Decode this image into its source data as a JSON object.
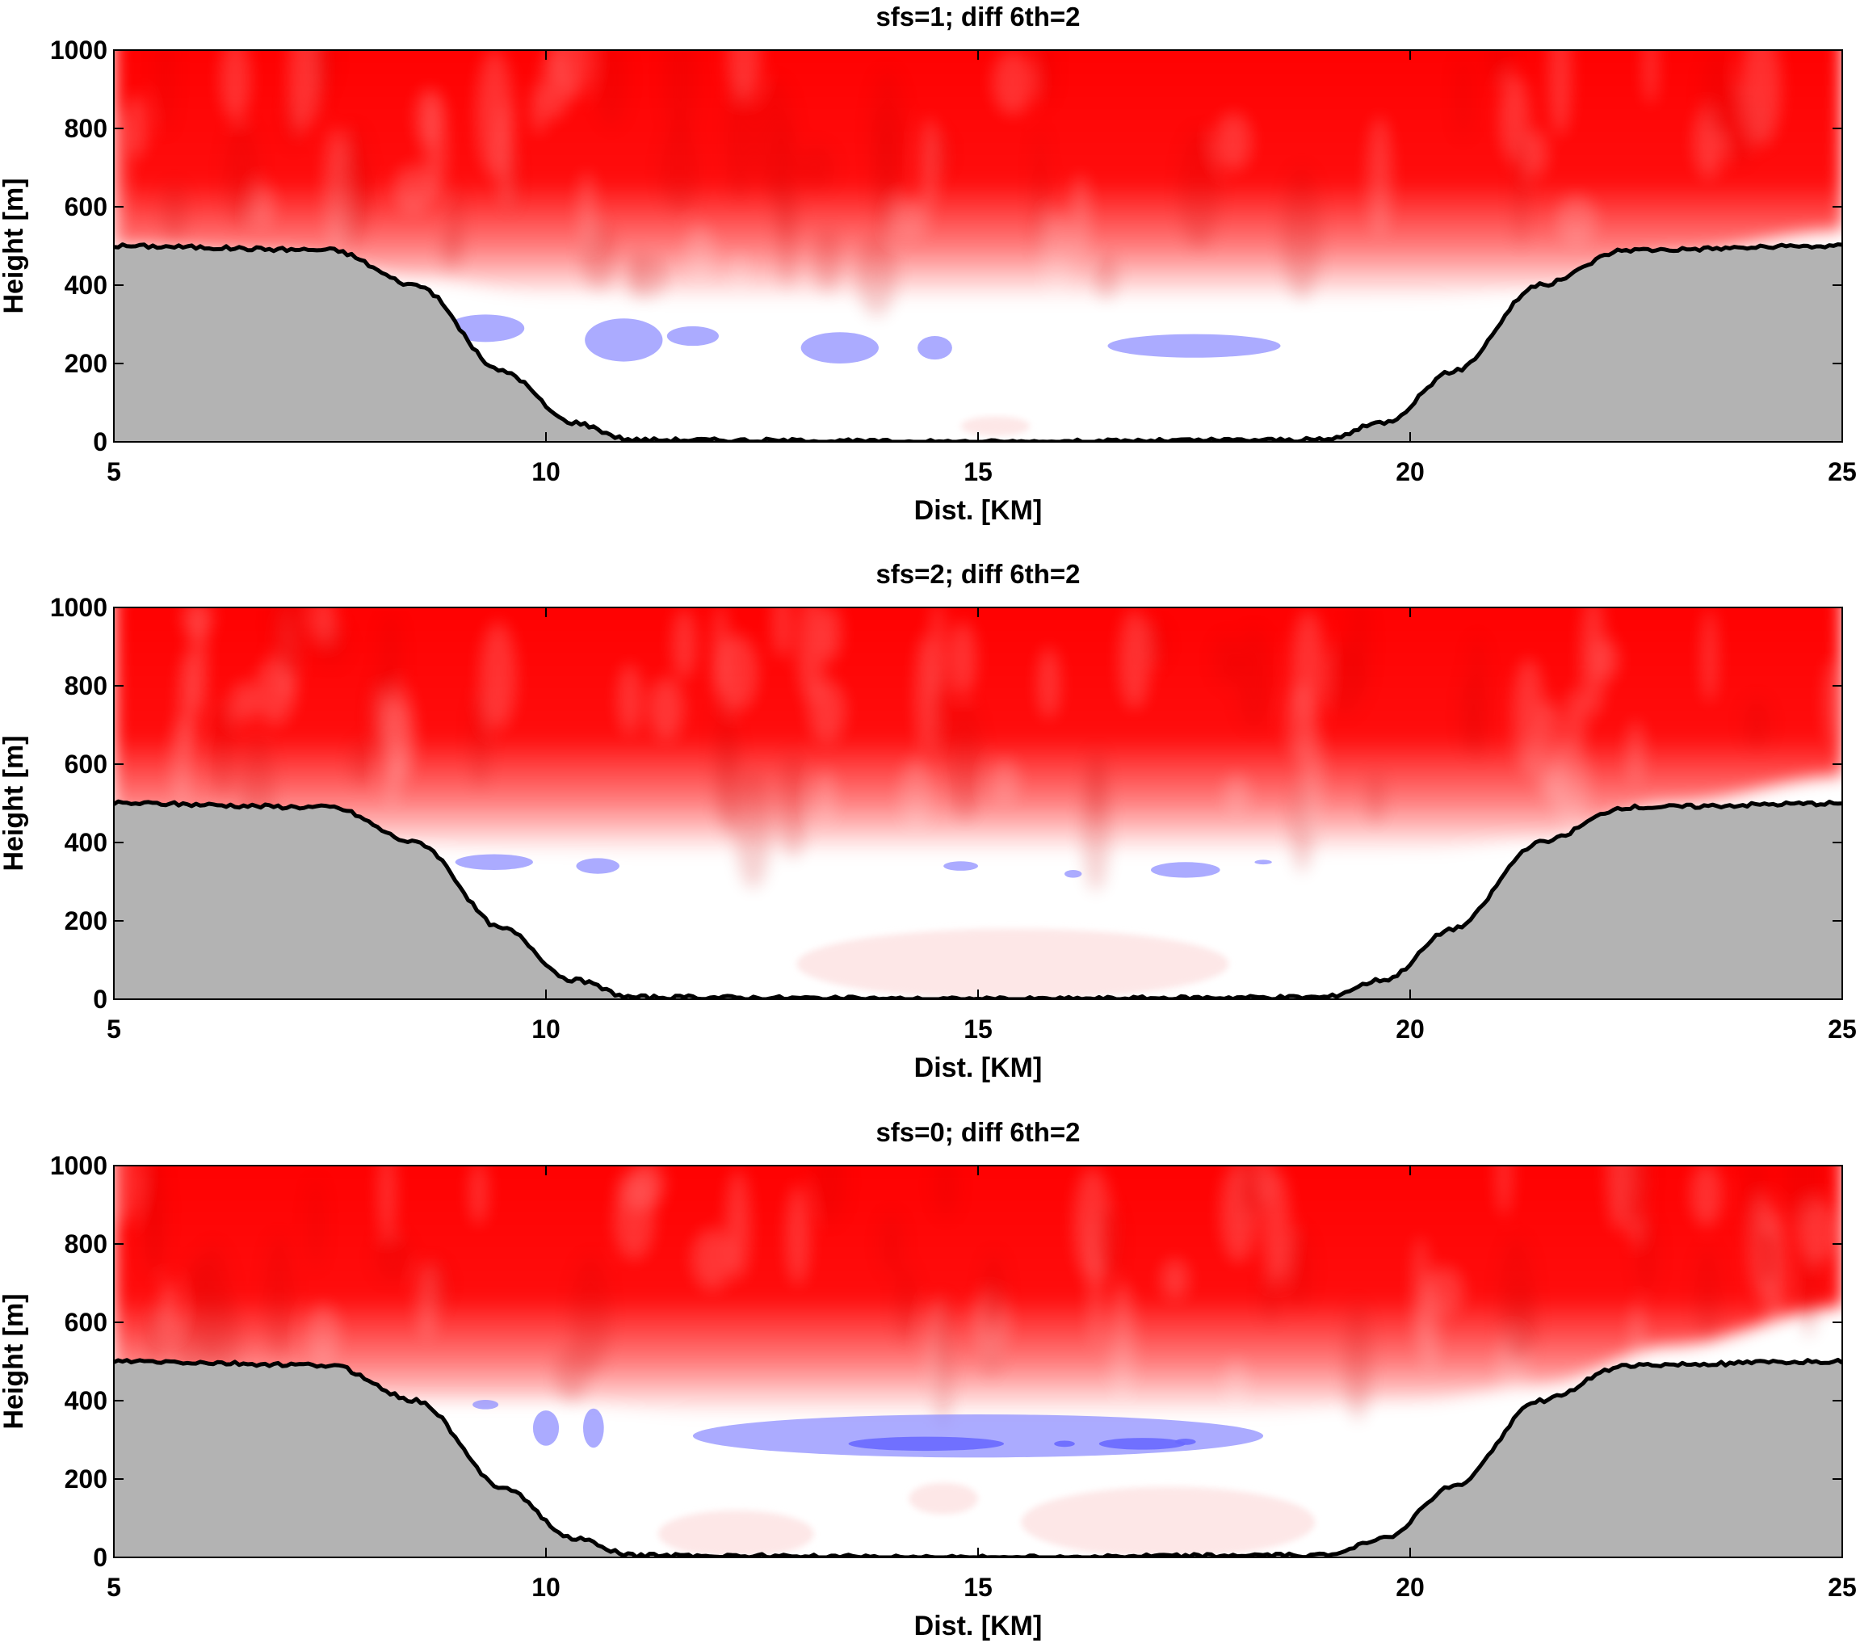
{
  "chart_data": [
    {
      "type": "heatmap",
      "title": "sfs=1; diff 6th=2",
      "xlabel": "Dist. [KM]",
      "ylabel": "Height [m]",
      "xlim": [
        5,
        25
      ],
      "ylim": [
        0,
        1000
      ],
      "xticks": [
        "5",
        "10",
        "15",
        "20",
        "25"
      ],
      "yticks": [
        "0",
        "200",
        "400",
        "600",
        "800",
        "1000"
      ],
      "colors": {
        "positive": "#ff0000",
        "negative": "#8f8fff",
        "terrain": "#b3b3b3",
        "terrain_outline": "#000000"
      },
      "terrain_profile": {
        "x": [
          5,
          7.5,
          8.5,
          9.5,
          10.3,
          11,
          15,
          19,
          19.7,
          20.5,
          21.5,
          22.5,
          25
        ],
        "y": [
          500,
          490,
          400,
          180,
          50,
          5,
          0,
          5,
          50,
          180,
          400,
          490,
          500
        ]
      },
      "warm_layer_base": {
        "x": [
          5,
          7,
          8.5,
          10,
          12,
          15,
          18,
          20,
          21.5,
          23,
          25
        ],
        "y": [
          540,
          520,
          460,
          420,
          400,
          400,
          400,
          410,
          430,
          520,
          580
        ]
      },
      "negative_regions": [
        {
          "x": 9.3,
          "y": 290,
          "rx": 0.45,
          "ry": 35,
          "level": 1
        },
        {
          "x": 10.9,
          "y": 260,
          "rx": 0.45,
          "ry": 55,
          "level": 1
        },
        {
          "x": 11.7,
          "y": 270,
          "rx": 0.3,
          "ry": 25,
          "level": 1
        },
        {
          "x": 13.4,
          "y": 240,
          "rx": 0.45,
          "ry": 40,
          "level": 1
        },
        {
          "x": 14.5,
          "y": 240,
          "rx": 0.2,
          "ry": 30,
          "level": 1
        },
        {
          "x": 17.5,
          "y": 245,
          "rx": 1.0,
          "ry": 30,
          "level": 1
        }
      ],
      "weak_positive_regions": [
        {
          "x": 15.2,
          "y": 40,
          "rx": 0.4,
          "ry": 25
        }
      ]
    },
    {
      "type": "heatmap",
      "title": "sfs=2; diff 6th=2",
      "xlabel": "Dist. [KM]",
      "ylabel": "Height [m]",
      "xlim": [
        5,
        25
      ],
      "ylim": [
        0,
        1000
      ],
      "xticks": [
        "5",
        "10",
        "15",
        "20",
        "25"
      ],
      "yticks": [
        "0",
        "200",
        "400",
        "600",
        "800",
        "1000"
      ],
      "colors": {
        "positive": "#ff0000",
        "negative": "#8f8fff",
        "terrain": "#b3b3b3",
        "terrain_outline": "#000000"
      },
      "terrain_profile": {
        "x": [
          5,
          7.5,
          8.5,
          9.5,
          10.3,
          11,
          15,
          19,
          19.7,
          20.5,
          21.5,
          22.5,
          25
        ],
        "y": [
          500,
          490,
          400,
          180,
          50,
          5,
          0,
          5,
          50,
          180,
          400,
          490,
          500
        ]
      },
      "warm_layer_base": {
        "x": [
          5,
          7,
          8.5,
          10,
          12,
          15,
          18,
          20,
          21.5,
          23,
          25
        ],
        "y": [
          510,
          470,
          430,
          420,
          410,
          410,
          410,
          420,
          450,
          540,
          610
        ]
      },
      "negative_regions": [
        {
          "x": 9.4,
          "y": 350,
          "rx": 0.45,
          "ry": 20,
          "level": 1
        },
        {
          "x": 10.6,
          "y": 340,
          "rx": 0.25,
          "ry": 20,
          "level": 1
        },
        {
          "x": 14.8,
          "y": 340,
          "rx": 0.2,
          "ry": 12,
          "level": 1
        },
        {
          "x": 16.1,
          "y": 320,
          "rx": 0.1,
          "ry": 10,
          "level": 1
        },
        {
          "x": 17.4,
          "y": 330,
          "rx": 0.4,
          "ry": 20,
          "level": 1
        },
        {
          "x": 18.3,
          "y": 350,
          "rx": 0.1,
          "ry": 6,
          "level": 1
        }
      ],
      "weak_positive_regions": [
        {
          "x": 15.4,
          "y": 90,
          "rx": 2.5,
          "ry": 90
        }
      ]
    },
    {
      "type": "heatmap",
      "title": "sfs=0; diff 6th=2",
      "xlabel": "Dist. [KM]",
      "ylabel": "Height [m]",
      "xlim": [
        5,
        25
      ],
      "ylim": [
        0,
        1000
      ],
      "xticks": [
        "5",
        "10",
        "15",
        "20",
        "25"
      ],
      "yticks": [
        "0",
        "200",
        "400",
        "600",
        "800",
        "1000"
      ],
      "colors": {
        "positive": "#ff0000",
        "negative": "#8f8fff",
        "terrain": "#b3b3b3",
        "terrain_outline": "#000000"
      },
      "terrain_profile": {
        "x": [
          5,
          7.5,
          8.5,
          9.5,
          10.3,
          11,
          15,
          19,
          19.7,
          20.5,
          21.5,
          22.5,
          25
        ],
        "y": [
          500,
          490,
          400,
          180,
          50,
          5,
          0,
          5,
          50,
          180,
          400,
          490,
          500
        ]
      },
      "warm_layer_base": {
        "x": [
          5,
          7,
          8.5,
          10,
          12,
          15,
          18,
          20,
          21.5,
          23,
          25
        ],
        "y": [
          500,
          470,
          440,
          440,
          410,
          400,
          410,
          440,
          480,
          580,
          680
        ]
      },
      "negative_regions": [
        {
          "x": 9.3,
          "y": 390,
          "rx": 0.15,
          "ry": 12,
          "level": 1
        },
        {
          "x": 10.0,
          "y": 330,
          "rx": 0.15,
          "ry": 45,
          "level": 1
        },
        {
          "x": 10.55,
          "y": 330,
          "rx": 0.12,
          "ry": 50,
          "level": 1
        },
        {
          "x": 15.0,
          "y": 310,
          "rx": 3.3,
          "ry": 55,
          "level": 1
        },
        {
          "x": 14.4,
          "y": 290,
          "rx": 0.9,
          "ry": 18,
          "level": 2
        },
        {
          "x": 16.9,
          "y": 290,
          "rx": 0.5,
          "ry": 15,
          "level": 2
        },
        {
          "x": 16.0,
          "y": 290,
          "rx": 0.12,
          "ry": 8,
          "level": 2
        },
        {
          "x": 17.4,
          "y": 295,
          "rx": 0.12,
          "ry": 8,
          "level": 2
        }
      ],
      "weak_positive_regions": [
        {
          "x": 12.2,
          "y": 60,
          "rx": 0.9,
          "ry": 60
        },
        {
          "x": 14.6,
          "y": 150,
          "rx": 0.4,
          "ry": 40
        },
        {
          "x": 17.2,
          "y": 90,
          "rx": 1.7,
          "ry": 90
        }
      ]
    }
  ]
}
